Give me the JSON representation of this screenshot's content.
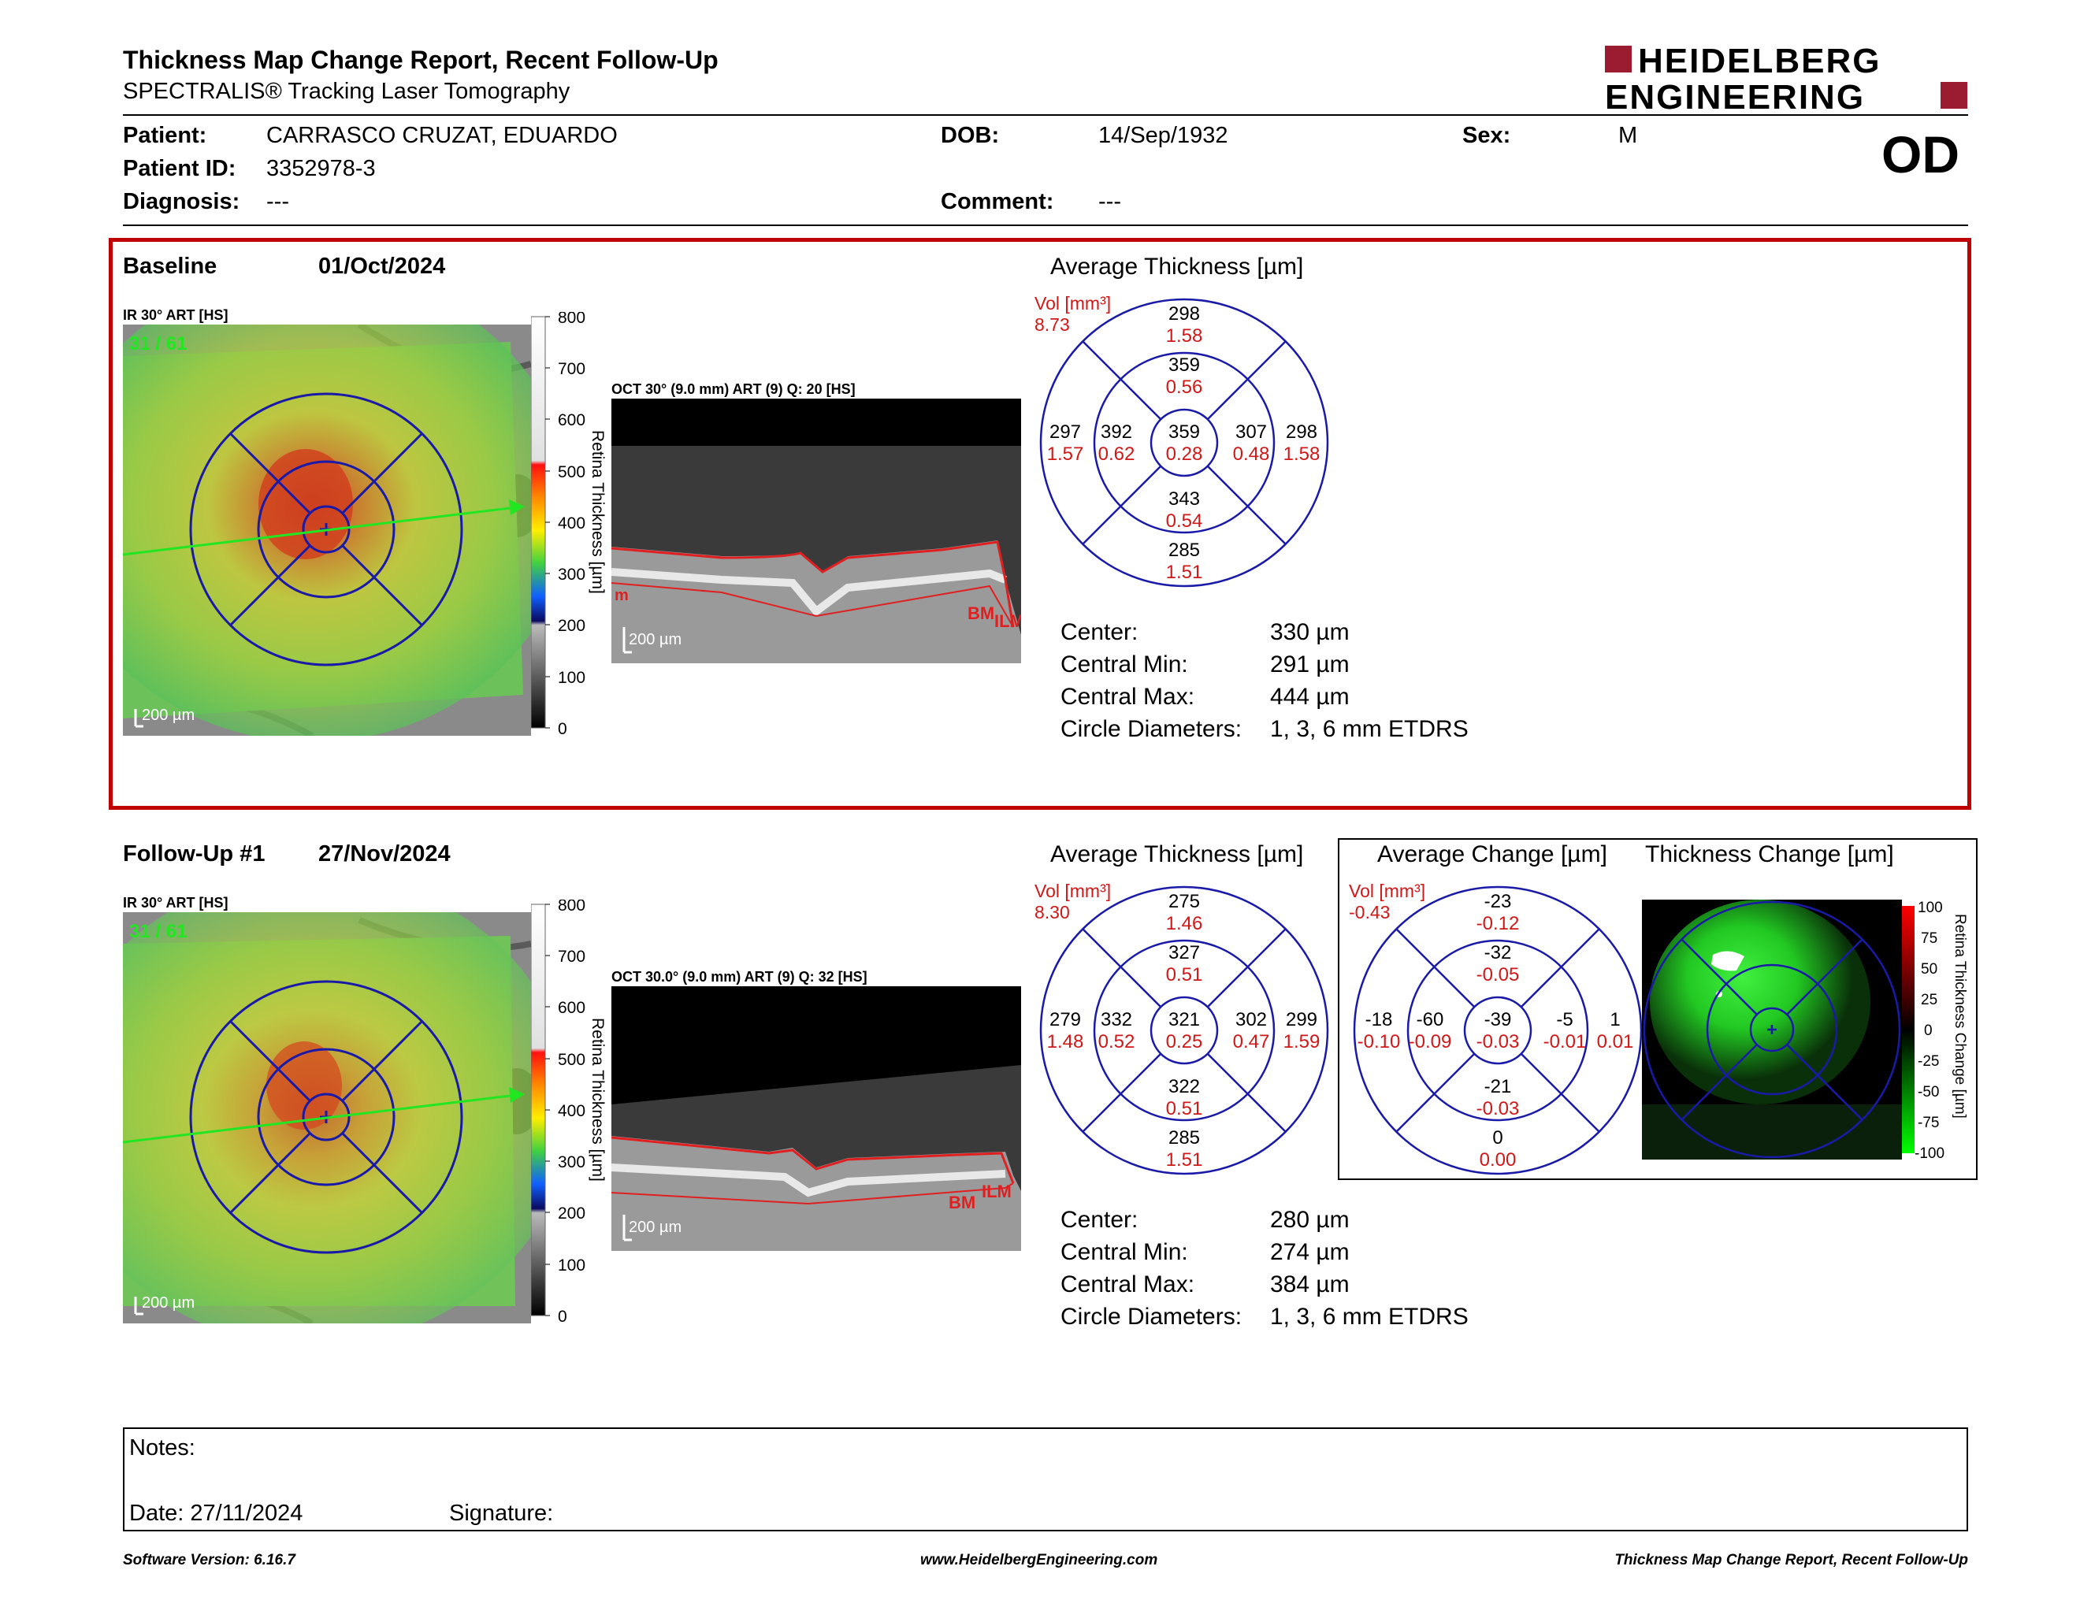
{
  "header": {
    "title": "Thickness Map Change Report, Recent Follow-Up",
    "subtitle": "SPECTRALIS® Tracking Laser Tomography",
    "logo_line1": "HEIDELBERG",
    "logo_line2": "ENGINEERING",
    "eye": "OD"
  },
  "patient": {
    "patient_label": "Patient:",
    "patient_value": "CARRASCO CRUZAT, EDUARDO",
    "id_label": "Patient ID:",
    "id_value": "3352978-3",
    "diagnosis_label": "Diagnosis:",
    "diagnosis_value": "---",
    "dob_label": "DOB:",
    "dob_value": "14/Sep/1932",
    "comment_label": "Comment:",
    "comment_value": "---",
    "sex_label": "Sex:",
    "sex_value": "M"
  },
  "baseline": {
    "label": "Baseline",
    "date": "01/Oct/2024",
    "ir_label": "IR 30° ART [HS]",
    "ir_counter": "31 / 61",
    "ir_scale": "200 µm",
    "oct_label": "OCT 30° (9.0 mm) ART (9) Q: 20 [HS]",
    "oct_scale": "200 µm",
    "oct_bm": "BM",
    "oct_ilm": "ILM",
    "oct_left": "m",
    "colorbar_ticks": [
      "800",
      "700",
      "600",
      "500",
      "400",
      "300",
      "200",
      "100",
      "0"
    ],
    "colorbar_title": "Retina Thickness [µm]",
    "avg_title": "Average Thickness [µm]",
    "vol_label": "Vol [mm³]",
    "vol_value": "8.73",
    "etdrs": {
      "outer_sup": {
        "t": "298",
        "v": "1.58"
      },
      "inner_sup": {
        "t": "359",
        "v": "0.56"
      },
      "outer_nasal_left": {
        "t": "297",
        "v": "1.57"
      },
      "inner_left": {
        "t": "392",
        "v": "0.62"
      },
      "center": {
        "t": "359",
        "v": "0.28"
      },
      "inner_right": {
        "t": "307",
        "v": "0.48"
      },
      "outer_right": {
        "t": "298",
        "v": "1.58"
      },
      "inner_inf": {
        "t": "343",
        "v": "0.54"
      },
      "outer_inf": {
        "t": "285",
        "v": "1.51"
      }
    },
    "stats": [
      {
        "label": "Center:",
        "value": "330 µm"
      },
      {
        "label": "Central Min:",
        "value": "291 µm"
      },
      {
        "label": "Central Max:",
        "value": "444 µm"
      },
      {
        "label": "Circle Diameters:",
        "value": "1, 3, 6 mm ETDRS"
      }
    ]
  },
  "followup": {
    "label": "Follow-Up #1",
    "date": "27/Nov/2024",
    "ir_label": "IR 30° ART [HS]",
    "ir_counter": "31 / 61",
    "ir_scale": "200 µm",
    "oct_label": "OCT 30.0° (9.0 mm) ART (9) Q: 32 [HS]",
    "oct_scale": "200 µm",
    "oct_bm": "BM",
    "oct_ilm": "ILM",
    "colorbar_ticks": [
      "800",
      "700",
      "600",
      "500",
      "400",
      "300",
      "200",
      "100",
      "0"
    ],
    "colorbar_title": "Retina Thickness [µm]",
    "avg_title": "Average Thickness [µm]",
    "vol_label": "Vol [mm³]",
    "vol_value": "8.30",
    "etdrs": {
      "outer_sup": {
        "t": "275",
        "v": "1.46"
      },
      "inner_sup": {
        "t": "327",
        "v": "0.51"
      },
      "outer_nasal_left": {
        "t": "279",
        "v": "1.48"
      },
      "inner_left": {
        "t": "332",
        "v": "0.52"
      },
      "center": {
        "t": "321",
        "v": "0.25"
      },
      "inner_right": {
        "t": "302",
        "v": "0.47"
      },
      "outer_right": {
        "t": "299",
        "v": "1.59"
      },
      "inner_inf": {
        "t": "322",
        "v": "0.51"
      },
      "outer_inf": {
        "t": "285",
        "v": "1.51"
      }
    },
    "stats": [
      {
        "label": "Center:",
        "value": "280 µm"
      },
      {
        "label": "Central Min:",
        "value": "274 µm"
      },
      {
        "label": "Central Max:",
        "value": "384 µm"
      },
      {
        "label": "Circle Diameters:",
        "value": "1, 3, 6 mm ETDRS"
      }
    ]
  },
  "change": {
    "avg_title": "Average Change [µm]",
    "map_title": "Thickness Change [µm]",
    "vol_label": "Vol [mm³]",
    "vol_value": "-0.43",
    "etdrs": {
      "outer_sup": {
        "t": "-23",
        "v": "-0.12"
      },
      "inner_sup": {
        "t": "-32",
        "v": "-0.05"
      },
      "outer_nasal_left": {
        "t": "-18",
        "v": "-0.10"
      },
      "inner_left": {
        "t": "-60",
        "v": "-0.09"
      },
      "center": {
        "t": "-39",
        "v": "-0.03"
      },
      "inner_right": {
        "t": "-5",
        "v": "-0.01"
      },
      "outer_right": {
        "t": "1",
        "v": "0.01"
      },
      "inner_inf": {
        "t": "-21",
        "v": "-0.03"
      },
      "outer_inf": {
        "t": "0",
        "v": "0.00"
      }
    },
    "colorbar_ticks": [
      "100",
      "75",
      "50",
      "25",
      "0",
      "-25",
      "-50",
      "-75",
      "-100"
    ],
    "colorbar_title": "Retina Thickness Change [µm]"
  },
  "notes": {
    "notes_label": "Notes:",
    "date_label": "Date: 27/11/2024",
    "signature_label": "Signature:"
  },
  "footer": {
    "version": "Software Version: 6.16.7",
    "website": "www.HeidelbergEngineering.com",
    "report": "Thickness Map Change Report, Recent Follow-Up"
  },
  "colors": {
    "accent_red": "#c00000",
    "etdrs_blue": "#1a1aa8",
    "logo_red": "#9b1b30"
  }
}
